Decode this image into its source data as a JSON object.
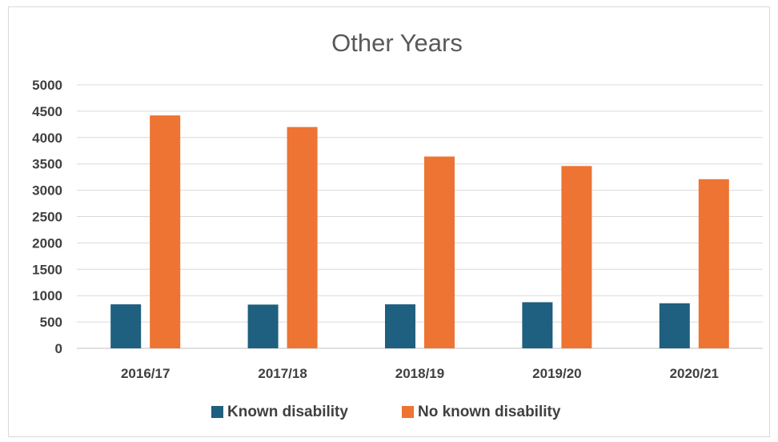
{
  "chart_data": {
    "type": "bar",
    "title": "Other Years",
    "categories": [
      "2016/17",
      "2017/18",
      "2018/19",
      "2019/20",
      "2020/21"
    ],
    "series": [
      {
        "name": "Known disability",
        "color": "#1f5f7f",
        "values": [
          835,
          830,
          835,
          875,
          855
        ]
      },
      {
        "name": "No known disability",
        "color": "#ed7433",
        "values": [
          4420,
          4200,
          3640,
          3460,
          3210
        ]
      }
    ],
    "yticks": [
      "0",
      "500",
      "1000",
      "1500",
      "2000",
      "2500",
      "3000",
      "3500",
      "4000",
      "4500",
      "5000"
    ],
    "ylim": [
      0,
      5000
    ],
    "grid": true,
    "legend_position": "bottom"
  }
}
